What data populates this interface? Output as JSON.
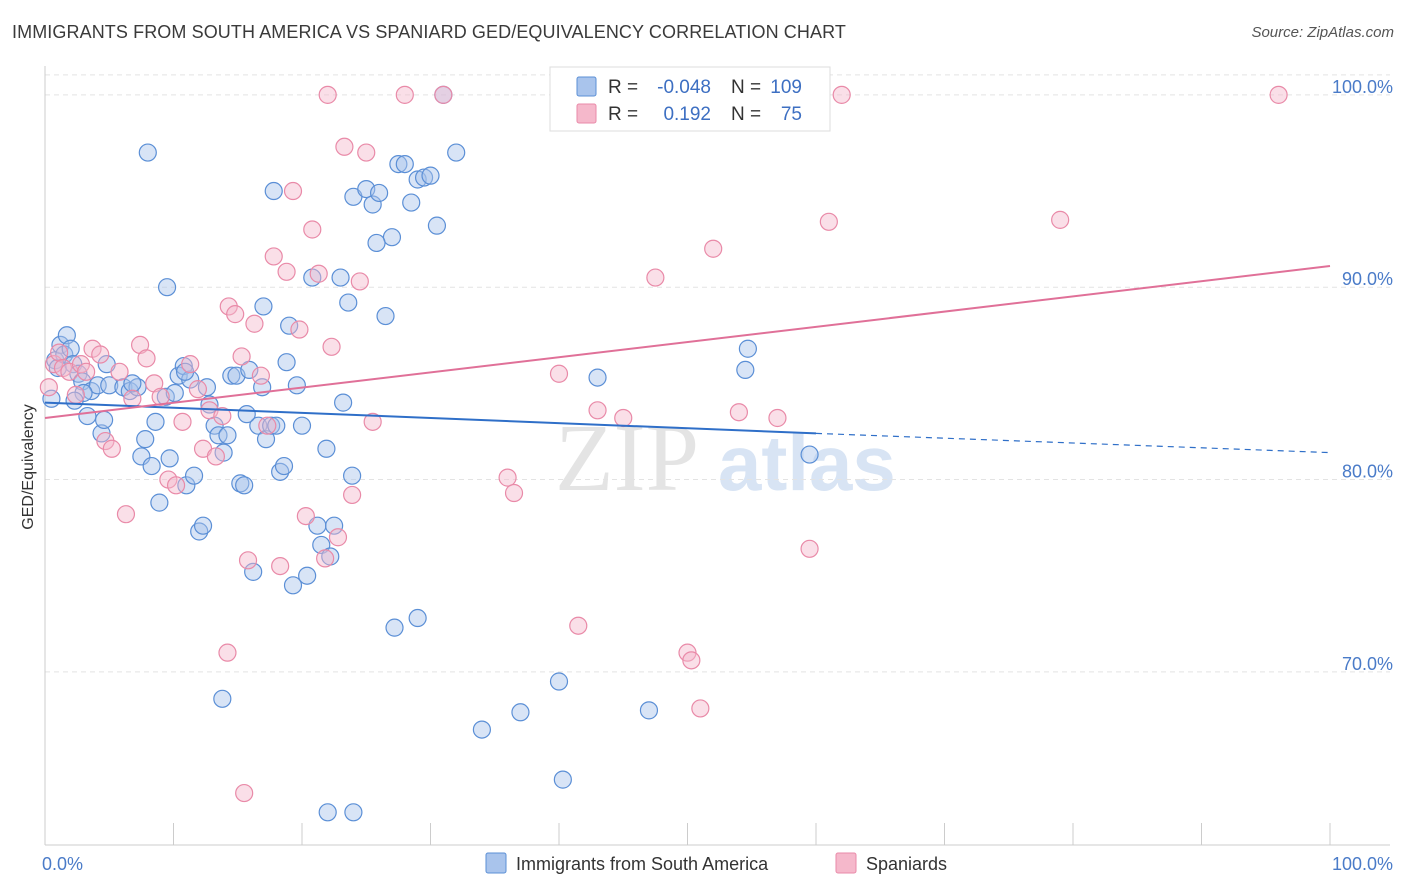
{
  "title": "IMMIGRANTS FROM SOUTH AMERICA VS SPANIARD GED/EQUIVALENCY CORRELATION CHART",
  "source": "Source: ZipAtlas.com",
  "watermark": {
    "zip": "ZIP",
    "atlas": "atlas"
  },
  "colors": {
    "blue_fill": "#a9c4ec",
    "blue_stroke": "#5b8fd6",
    "blue_line": "#2f6fc8",
    "pink_fill": "#f5b8cb",
    "pink_stroke": "#e98aa8",
    "pink_line": "#e07098",
    "grid": "#e3e3e3",
    "axis_label": "#4a7bc8"
  },
  "legend": {
    "series": [
      {
        "r_label": "R =",
        "r_value": "-0.048",
        "n_label": "N =",
        "n_value": "109"
      },
      {
        "r_label": "R =",
        "r_value": "0.192",
        "n_label": "N =",
        "n_value": "75"
      }
    ]
  },
  "bottom_legend": [
    "Immigrants from South America",
    "Spaniards"
  ],
  "chart_data": {
    "type": "scatter",
    "title": "IMMIGRANTS FROM SOUTH AMERICA VS SPANIARD GED/EQUIVALENCY CORRELATION CHART",
    "xlabel": "",
    "ylabel": "GED/Equivalency",
    "xlim": [
      0,
      100
    ],
    "ylim": [
      61,
      101.5
    ],
    "x_tick_labels": [
      "0.0%",
      "100.0%"
    ],
    "y_ticks": [
      70,
      80,
      90,
      100
    ],
    "y_tick_labels": [
      "70.0%",
      "80.0%",
      "90.0%",
      "100.0%"
    ],
    "grid": true,
    "legend_position": "top-center",
    "series": [
      {
        "name": "Immigrants from South America",
        "r": -0.048,
        "n": 109,
        "trend": {
          "x": [
            0,
            60
          ],
          "y": [
            84.0,
            82.4
          ],
          "dashed_to": [
            100,
            81.4
          ]
        },
        "points": [
          [
            0.5,
            84.2
          ],
          [
            0.8,
            86.2
          ],
          [
            1.0,
            85.8
          ],
          [
            1.2,
            87.0
          ],
          [
            1.5,
            86.5
          ],
          [
            1.7,
            87.5
          ],
          [
            2.0,
            86.8
          ],
          [
            2.2,
            86.0
          ],
          [
            2.6,
            85.5
          ],
          [
            2.9,
            85.1
          ],
          [
            3.3,
            83.3
          ],
          [
            3.6,
            84.6
          ],
          [
            4.1,
            84.9
          ],
          [
            4.4,
            82.4
          ],
          [
            4.6,
            83.1
          ],
          [
            5.0,
            84.9
          ],
          [
            6.1,
            84.8
          ],
          [
            6.6,
            84.6
          ],
          [
            7.2,
            84.8
          ],
          [
            7.5,
            81.2
          ],
          [
            7.8,
            82.1
          ],
          [
            8.3,
            80.7
          ],
          [
            8.6,
            83.0
          ],
          [
            8.9,
            78.8
          ],
          [
            9.4,
            84.3
          ],
          [
            9.7,
            81.1
          ],
          [
            10.1,
            84.5
          ],
          [
            10.4,
            85.4
          ],
          [
            10.8,
            85.9
          ],
          [
            11.3,
            85.2
          ],
          [
            11.0,
            79.7
          ],
          [
            11.6,
            80.2
          ],
          [
            12.0,
            77.3
          ],
          [
            12.3,
            77.6
          ],
          [
            12.8,
            83.9
          ],
          [
            13.2,
            82.8
          ],
          [
            13.5,
            82.3
          ],
          [
            13.9,
            81.4
          ],
          [
            14.2,
            82.3
          ],
          [
            14.5,
            85.4
          ],
          [
            14.9,
            85.4
          ],
          [
            15.2,
            79.8
          ],
          [
            15.5,
            79.7
          ],
          [
            15.9,
            85.7
          ],
          [
            16.2,
            75.2
          ],
          [
            16.6,
            82.8
          ],
          [
            16.9,
            84.8
          ],
          [
            17.2,
            82.1
          ],
          [
            17.6,
            82.8
          ],
          [
            18.0,
            82.8
          ],
          [
            18.3,
            80.4
          ],
          [
            18.6,
            80.7
          ],
          [
            19.0,
            88.0
          ],
          [
            19.3,
            74.5
          ],
          [
            19.6,
            84.9
          ],
          [
            20.0,
            82.8
          ],
          [
            20.4,
            75.0
          ],
          [
            20.8,
            90.5
          ],
          [
            21.2,
            77.6
          ],
          [
            21.5,
            76.6
          ],
          [
            21.9,
            81.6
          ],
          [
            22.2,
            76.0
          ],
          [
            22.5,
            77.6
          ],
          [
            23.2,
            84.0
          ],
          [
            23.6,
            89.2
          ],
          [
            23.9,
            80.2
          ],
          [
            8.0,
            97.0
          ],
          [
            9.5,
            90.0
          ],
          [
            10.9,
            85.6
          ],
          [
            13.8,
            68.6
          ],
          [
            17.0,
            89.0
          ],
          [
            17.8,
            95.0
          ],
          [
            23.0,
            90.5
          ],
          [
            24.0,
            94.7
          ],
          [
            25.0,
            95.1
          ],
          [
            25.5,
            94.3
          ],
          [
            26.0,
            94.9
          ],
          [
            26.5,
            88.5
          ],
          [
            27.0,
            92.6
          ],
          [
            27.5,
            96.4
          ],
          [
            28.0,
            96.4
          ],
          [
            28.5,
            94.4
          ],
          [
            29.0,
            95.6
          ],
          [
            29.5,
            95.7
          ],
          [
            30.0,
            95.8
          ],
          [
            30.5,
            93.2
          ],
          [
            31.0,
            100.0
          ],
          [
            32.0,
            97.0
          ],
          [
            25.8,
            92.3
          ],
          [
            27.2,
            72.3
          ],
          [
            29.0,
            72.8
          ],
          [
            34.0,
            67.0
          ],
          [
            37.0,
            67.9
          ],
          [
            40.0,
            69.5
          ],
          [
            40.3,
            64.4
          ],
          [
            43.0,
            85.3
          ],
          [
            47.0,
            68.0
          ],
          [
            54.5,
            85.7
          ],
          [
            54.7,
            86.8
          ],
          [
            59.5,
            81.3
          ],
          [
            22.0,
            62.7
          ],
          [
            24.0,
            62.7
          ],
          [
            3.0,
            84.5
          ],
          [
            4.8,
            86.0
          ],
          [
            2.3,
            84.1
          ],
          [
            6.8,
            85.0
          ],
          [
            12.6,
            84.8
          ],
          [
            15.7,
            83.4
          ],
          [
            18.8,
            86.1
          ]
        ]
      },
      {
        "name": "Spaniards",
        "r": 0.192,
        "n": 75,
        "trend": {
          "x": [
            0,
            100
          ],
          "y": [
            83.2,
            91.1
          ]
        },
        "points": [
          [
            0.3,
            84.8
          ],
          [
            0.7,
            86.0
          ],
          [
            1.1,
            86.6
          ],
          [
            1.4,
            85.8
          ],
          [
            1.9,
            85.6
          ],
          [
            2.4,
            84.4
          ],
          [
            2.8,
            86.0
          ],
          [
            3.2,
            85.6
          ],
          [
            3.7,
            86.8
          ],
          [
            4.3,
            86.5
          ],
          [
            4.7,
            82.0
          ],
          [
            5.2,
            81.6
          ],
          [
            5.8,
            85.6
          ],
          [
            6.3,
            78.2
          ],
          [
            6.8,
            84.2
          ],
          [
            7.4,
            87.0
          ],
          [
            7.9,
            86.3
          ],
          [
            8.5,
            85.0
          ],
          [
            9.0,
            84.3
          ],
          [
            9.6,
            80.0
          ],
          [
            10.2,
            79.7
          ],
          [
            10.7,
            83.0
          ],
          [
            11.3,
            86.0
          ],
          [
            11.9,
            84.7
          ],
          [
            12.3,
            81.6
          ],
          [
            12.8,
            83.6
          ],
          [
            13.3,
            81.2
          ],
          [
            13.8,
            83.3
          ],
          [
            14.3,
            89.0
          ],
          [
            14.8,
            88.6
          ],
          [
            15.3,
            86.4
          ],
          [
            15.8,
            75.8
          ],
          [
            16.3,
            88.1
          ],
          [
            16.8,
            85.4
          ],
          [
            17.3,
            82.8
          ],
          [
            17.8,
            91.6
          ],
          [
            18.3,
            75.5
          ],
          [
            18.8,
            90.8
          ],
          [
            19.3,
            95.0
          ],
          [
            19.8,
            87.8
          ],
          [
            20.3,
            78.1
          ],
          [
            20.8,
            93.0
          ],
          [
            21.3,
            90.7
          ],
          [
            21.8,
            75.9
          ],
          [
            22.3,
            86.9
          ],
          [
            22.8,
            77.0
          ],
          [
            23.3,
            97.3
          ],
          [
            23.9,
            79.2
          ],
          [
            24.5,
            90.3
          ],
          [
            25.0,
            97.0
          ],
          [
            25.5,
            83.0
          ],
          [
            28.0,
            100.0
          ],
          [
            31.0,
            100.0
          ],
          [
            36.0,
            80.1
          ],
          [
            36.5,
            79.3
          ],
          [
            40.0,
            85.5
          ],
          [
            41.5,
            72.4
          ],
          [
            43.0,
            83.6
          ],
          [
            45.0,
            83.2
          ],
          [
            47.0,
            99.0
          ],
          [
            47.5,
            90.5
          ],
          [
            50.0,
            71.0
          ],
          [
            50.3,
            70.6
          ],
          [
            51.0,
            68.1
          ],
          [
            52.0,
            92.0
          ],
          [
            54.0,
            83.5
          ],
          [
            57.0,
            83.2
          ],
          [
            59.5,
            76.4
          ],
          [
            61.0,
            93.4
          ],
          [
            62.0,
            100.0
          ],
          [
            79.0,
            93.5
          ],
          [
            96.0,
            100.0
          ],
          [
            14.2,
            71.0
          ],
          [
            15.5,
            63.7
          ],
          [
            22.0,
            100.0
          ]
        ]
      }
    ]
  }
}
